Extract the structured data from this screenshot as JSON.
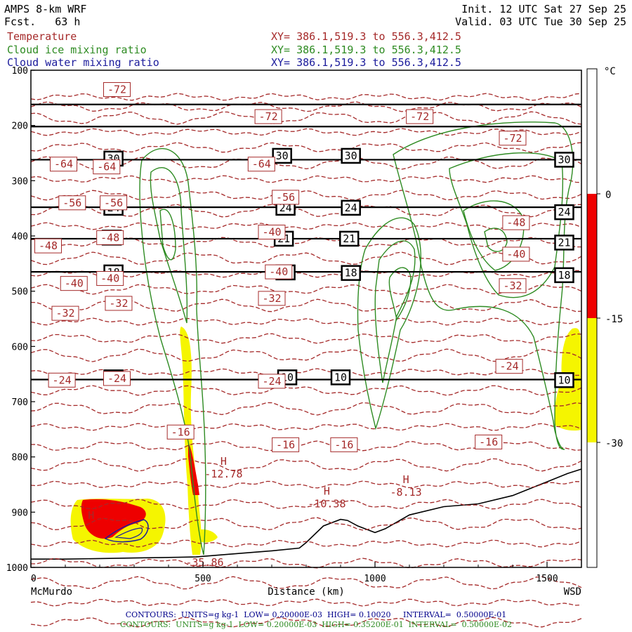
{
  "header": {
    "model": "AMPS 8-km WRF",
    "forecast_label": "Fcst.",
    "forecast_hours": "63 h",
    "init": "Init. 12 UTC Sat 27 Sep 25",
    "valid": "Valid. 03 UTC Tue 30 Sep 25"
  },
  "fields": [
    {
      "name": "Temperature",
      "xy": "XY= 386.1,519.3 to 556.3,412.5",
      "color": "#a52a2a"
    },
    {
      "name": "Cloud ice mixing ratio",
      "xy": "XY= 386.1,519.3 to 556.3,412.5",
      "color": "#2e8b22"
    },
    {
      "name": "Cloud water mixing ratio",
      "xy": "XY= 386.1,519.3 to 556.3,412.5",
      "color": "#1c1c9c"
    }
  ],
  "footer": {
    "line1": "CONTOURS:  UNITS=g kg-1  LOW= 0.20000E-03  HIGH= 0.10020     INTERVAL=  0.50000E-01",
    "line2": "CONTOURS:  UNITS=g kg-1  LOW= 0.20000E-03  HIGH= 0.35200E-01  INTERVAL=  0.50000E-02",
    "line1_color": "#00008b",
    "line2_color": "#2e8b22"
  },
  "chart_data": {
    "type": "cross-section",
    "xlabel": "Distance (km)",
    "x_ticks": [
      "0",
      "500",
      "1000",
      "1500"
    ],
    "x_end_labels": {
      "left": "McMurdo",
      "right": "WSD"
    },
    "xlim": [
      0,
      1600
    ],
    "ylim_hpa": [
      100,
      1000
    ],
    "y_ticks": [
      "100",
      "200",
      "300",
      "400",
      "500",
      "600",
      "700",
      "800",
      "900",
      "1000"
    ],
    "colorbar": {
      "unit": "°C",
      "ticks": [
        "0",
        "-15",
        "-30"
      ],
      "bands": [
        {
          "from": 0,
          "to": -15,
          "color": "#ee0000"
        },
        {
          "from": -15,
          "to": -30,
          "color": "#f5f500"
        }
      ]
    },
    "theta_lines": [
      {
        "p": 162
      },
      {
        "p": 202
      },
      {
        "p": 262,
        "label": "30"
      },
      {
        "p": 348,
        "label": "24"
      },
      {
        "p": 405,
        "label": "21"
      },
      {
        "p": 465,
        "label": "18"
      },
      {
        "p": 660,
        "label": "10"
      }
    ],
    "theta_label_points": [
      {
        "x": 240,
        "p": 260,
        "label": "30"
      },
      {
        "x": 730,
        "p": 255,
        "label": "30"
      },
      {
        "x": 930,
        "p": 255,
        "label": "30"
      },
      {
        "x": 1550,
        "p": 262,
        "label": "30"
      },
      {
        "x": 240,
        "p": 349,
        "label": "24"
      },
      {
        "x": 740,
        "p": 349,
        "label": "24"
      },
      {
        "x": 930,
        "p": 349,
        "label": "24"
      },
      {
        "x": 1550,
        "p": 357,
        "label": "24"
      },
      {
        "x": 235,
        "p": 403,
        "label": "21"
      },
      {
        "x": 735,
        "p": 405,
        "label": "21"
      },
      {
        "x": 925,
        "p": 405,
        "label": "21"
      },
      {
        "x": 1550,
        "p": 412,
        "label": "21"
      },
      {
        "x": 240,
        "p": 466,
        "label": "18"
      },
      {
        "x": 740,
        "p": 466,
        "label": "18"
      },
      {
        "x": 930,
        "p": 467,
        "label": "18"
      },
      {
        "x": 1550,
        "p": 471,
        "label": "18"
      },
      {
        "x": 240,
        "p": 656,
        "label": "10"
      },
      {
        "x": 745,
        "p": 656,
        "label": "10"
      },
      {
        "x": 900,
        "p": 656,
        "label": "10"
      },
      {
        "x": 1550,
        "p": 661,
        "label": "10"
      }
    ],
    "temperature_labels": [
      {
        "x": 250,
        "p": 135,
        "label": "-72"
      },
      {
        "x": 690,
        "p": 184,
        "label": "-72"
      },
      {
        "x": 1130,
        "p": 184,
        "label": "-72"
      },
      {
        "x": 1400,
        "p": 223,
        "label": "-72"
      },
      {
        "x": 95,
        "p": 270,
        "label": "-64"
      },
      {
        "x": 220,
        "p": 275,
        "label": "-64"
      },
      {
        "x": 670,
        "p": 270,
        "label": "-64"
      },
      {
        "x": 120,
        "p": 340,
        "label": "-56"
      },
      {
        "x": 240,
        "p": 340,
        "label": "-56"
      },
      {
        "x": 740,
        "p": 330,
        "label": "-56"
      },
      {
        "x": 50,
        "p": 418,
        "label": "-48"
      },
      {
        "x": 230,
        "p": 403,
        "label": "-48"
      },
      {
        "x": 1410,
        "p": 376,
        "label": "-48"
      },
      {
        "x": 700,
        "p": 393,
        "label": "-40"
      },
      {
        "x": 125,
        "p": 486,
        "label": "-40"
      },
      {
        "x": 230,
        "p": 477,
        "label": "-40"
      },
      {
        "x": 720,
        "p": 465,
        "label": "-40"
      },
      {
        "x": 1410,
        "p": 433,
        "label": "-40"
      },
      {
        "x": 100,
        "p": 540,
        "label": "-32"
      },
      {
        "x": 255,
        "p": 522,
        "label": "-32"
      },
      {
        "x": 700,
        "p": 513,
        "label": "-32"
      },
      {
        "x": 1400,
        "p": 490,
        "label": "-32"
      },
      {
        "x": 90,
        "p": 661,
        "label": "-24"
      },
      {
        "x": 250,
        "p": 658,
        "label": "-24"
      },
      {
        "x": 700,
        "p": 663,
        "label": "-24"
      },
      {
        "x": 1390,
        "p": 636,
        "label": "-24"
      },
      {
        "x": 435,
        "p": 755,
        "label": "-16"
      },
      {
        "x": 740,
        "p": 778,
        "label": "-16"
      },
      {
        "x": 910,
        "p": 778,
        "label": "-16"
      },
      {
        "x": 1330,
        "p": 773,
        "label": "-16"
      }
    ],
    "temperature_contour_spacing": 4,
    "temperature_isotherm_rows": [
      138,
      152,
      168,
      188,
      210,
      232,
      255,
      278,
      300,
      322,
      345,
      368,
      390,
      412,
      435,
      458,
      482,
      506,
      530,
      556,
      582,
      608,
      635,
      662,
      690,
      718,
      746,
      774,
      802,
      830,
      858,
      886
    ],
    "extrema": [
      {
        "x": 560,
        "p": 822,
        "tag": "H",
        "value": "-12.78"
      },
      {
        "x": 860,
        "p": 876,
        "tag": "H",
        "value": "-10.38"
      },
      {
        "x": 1090,
        "p": 855,
        "tag": "H",
        "value": "-8.13"
      },
      {
        "x": 175,
        "p": 920,
        "tag": "H",
        "value": ""
      },
      {
        "x": 505,
        "p": 982,
        "tag": "",
        "value": "-35.86"
      }
    ],
    "terrain_hpa": [
      [
        0,
        985
      ],
      [
        100,
        985
      ],
      [
        200,
        984
      ],
      [
        300,
        983
      ],
      [
        400,
        982
      ],
      [
        480,
        981
      ],
      [
        600,
        975
      ],
      [
        700,
        970
      ],
      [
        780,
        965
      ],
      [
        800,
        955
      ],
      [
        850,
        925
      ],
      [
        900,
        913
      ],
      [
        920,
        915
      ],
      [
        950,
        925
      ],
      [
        1000,
        937
      ],
      [
        1030,
        930
      ],
      [
        1100,
        905
      ],
      [
        1200,
        890
      ],
      [
        1300,
        885
      ],
      [
        1400,
        870
      ],
      [
        1500,
        845
      ],
      [
        1560,
        830
      ],
      [
        1600,
        822
      ]
    ]
  }
}
